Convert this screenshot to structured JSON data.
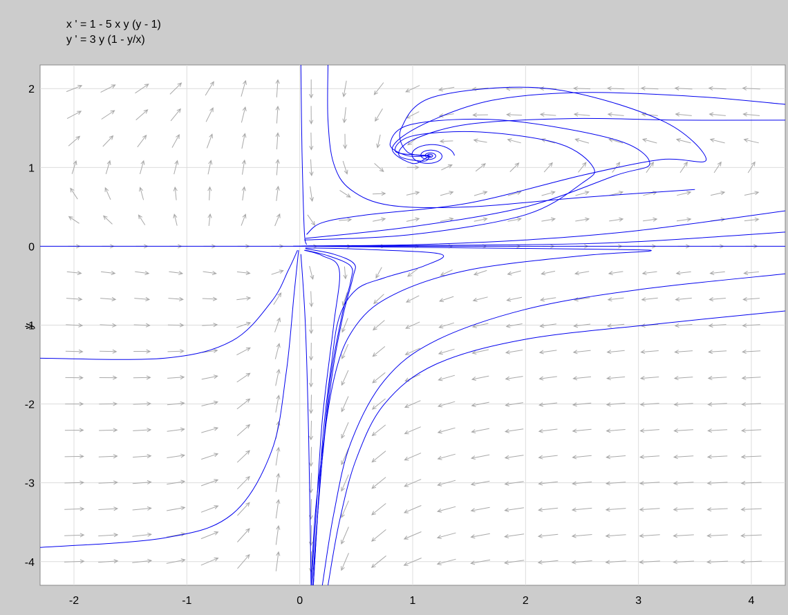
{
  "equations": {
    "x_prime": "x ' = 1 - 5 x y (y - 1)",
    "y_prime": "y ' = 3 y (1 - y/x)"
  },
  "chart_data": {
    "type": "phase-portrait",
    "title": "",
    "xlabel": "",
    "ylabel": "y",
    "xlim": [
      -2.3,
      4.3
    ],
    "ylim": [
      -4.3,
      2.3
    ],
    "x_ticks": [
      -2,
      -1,
      0,
      1,
      2,
      3,
      4
    ],
    "y_ticks": [
      2,
      1,
      0,
      -1,
      -2,
      -3,
      -4
    ],
    "grid": true,
    "colors": {
      "background": "#cccccc",
      "plot_area": "#ffffff",
      "grid": "#dcdcdc",
      "direction_field": "#a8a8a8",
      "solution_curves": "#0000ee"
    },
    "direction_field": {
      "x_range": [
        -2,
        4
      ],
      "y_range": [
        -4,
        2
      ]
    },
    "equilibrium_spiral": {
      "x": 1.15,
      "y": 1.15
    },
    "solution_curves": [
      {
        "name": "",
        "points": [
          [
            0.01,
            2.3
          ],
          [
            0.02,
            1.2
          ],
          [
            0.04,
            0.2
          ],
          [
            0.06,
            0.02
          ]
        ]
      },
      {
        "name": "",
        "points": [
          [
            0.25,
            2.3
          ],
          [
            0.25,
            1.6
          ],
          [
            0.3,
            1.05
          ],
          [
            0.45,
            0.72
          ],
          [
            0.8,
            0.52
          ],
          [
            1.5,
            0.5
          ],
          [
            2.5,
            0.62
          ],
          [
            3.5,
            0.72
          ]
        ]
      },
      {
        "name": "",
        "points": [
          [
            0.06,
            0.15
          ],
          [
            0.2,
            0.3
          ],
          [
            0.6,
            0.4
          ],
          [
            1.5,
            0.55
          ],
          [
            2.5,
            0.9
          ],
          [
            3.2,
            1.1
          ],
          [
            3.6,
            1.1
          ],
          [
            3.2,
            1.6
          ],
          [
            2.2,
            2.0
          ],
          [
            1.2,
            1.9
          ],
          [
            0.9,
            1.5
          ],
          [
            0.95,
            1.2
          ],
          [
            1.15,
            1.15
          ]
        ]
      },
      {
        "name": "",
        "points": [
          [
            0.05,
            0.1
          ],
          [
            1,
            0.25
          ],
          [
            2,
            0.5
          ],
          [
            2.8,
            0.9
          ],
          [
            3.1,
            1.05
          ],
          [
            2.8,
            1.35
          ],
          [
            1.8,
            1.6
          ],
          [
            1.0,
            1.55
          ],
          [
            0.8,
            1.3
          ],
          [
            0.95,
            1.15
          ],
          [
            1.15,
            1.15
          ]
        ]
      },
      {
        "name": "",
        "points": [
          [
            0.04,
            0.08
          ],
          [
            1,
            0.15
          ],
          [
            2,
            0.4
          ],
          [
            2.5,
            0.8
          ],
          [
            2.6,
            1.0
          ],
          [
            2.3,
            1.3
          ],
          [
            1.6,
            1.45
          ],
          [
            1.0,
            1.4
          ],
          [
            0.85,
            1.2
          ],
          [
            1.15,
            1.15
          ]
        ]
      },
      {
        "name": "",
        "points": [
          [
            4.3,
            1.8
          ],
          [
            3.5,
            1.9
          ],
          [
            2.5,
            1.95
          ],
          [
            1.7,
            1.85
          ],
          [
            1.1,
            1.55
          ],
          [
            0.82,
            1.25
          ],
          [
            1.0,
            1.05
          ],
          [
            1.15,
            1.15
          ]
        ]
      },
      {
        "name": "",
        "points": [
          [
            4.3,
            1.6
          ],
          [
            3.4,
            1.6
          ],
          [
            2.4,
            1.62
          ],
          [
            1.5,
            1.55
          ],
          [
            1.0,
            1.35
          ],
          [
            0.88,
            1.15
          ],
          [
            1.1,
            1.08
          ],
          [
            1.15,
            1.15
          ]
        ]
      },
      {
        "name": "",
        "points": [
          [
            4.3,
            0.45
          ],
          [
            3,
            0.2
          ],
          [
            2,
            0.08
          ],
          [
            1,
            0.02
          ],
          [
            0.1,
            0.005
          ],
          [
            0.05,
            0.002
          ]
        ]
      },
      {
        "name": "",
        "points": [
          [
            4.3,
            0.18
          ],
          [
            3,
            0.06
          ],
          [
            2,
            0.02
          ],
          [
            0.1,
            0.003
          ],
          [
            0.05,
            0.001
          ]
        ]
      },
      {
        "name": "",
        "points": [
          [
            -2.3,
            0
          ],
          [
            4.3,
            0
          ]
        ]
      },
      {
        "name": "",
        "points": [
          [
            0.05,
            0
          ],
          [
            1.5,
            -0.02
          ],
          [
            2.8,
            -0.04
          ],
          [
            3.1,
            -0.06
          ],
          [
            2.5,
            -0.12
          ],
          [
            1.5,
            -0.3
          ],
          [
            0.85,
            -0.6
          ],
          [
            0.5,
            -1.0
          ],
          [
            0.3,
            -1.7
          ],
          [
            0.15,
            -3.2
          ],
          [
            0.1,
            -4.3
          ]
        ]
      },
      {
        "name": "",
        "points": [
          [
            0.05,
            -0.02
          ],
          [
            0.6,
            -0.04
          ],
          [
            1.25,
            -0.1
          ],
          [
            1.1,
            -0.25
          ],
          [
            0.75,
            -0.4
          ],
          [
            0.5,
            -0.55
          ],
          [
            0.35,
            -0.9
          ],
          [
            0.28,
            -1.5
          ],
          [
            0.2,
            -2.5
          ],
          [
            0.12,
            -4.3
          ]
        ]
      },
      {
        "name": "",
        "points": [
          [
            0.05,
            -0.03
          ],
          [
            0.3,
            -0.1
          ],
          [
            0.48,
            -0.22
          ],
          [
            0.47,
            -0.4
          ],
          [
            0.38,
            -0.9
          ],
          [
            0.28,
            -1.7
          ],
          [
            0.18,
            -3.0
          ],
          [
            0.12,
            -4.3
          ]
        ]
      },
      {
        "name": "",
        "points": [
          [
            0.05,
            -0.05
          ],
          [
            0.25,
            -0.12
          ],
          [
            0.45,
            -0.25
          ],
          [
            0.45,
            -0.45
          ],
          [
            0.37,
            -0.9
          ],
          [
            0.26,
            -1.8
          ],
          [
            0.17,
            -3.2
          ],
          [
            0.11,
            -4.3
          ]
        ]
      },
      {
        "name": "",
        "points": [
          [
            0.04,
            -0.05
          ],
          [
            0.2,
            -0.12
          ],
          [
            0.35,
            -0.3
          ],
          [
            0.3,
            -1.0
          ],
          [
            0.2,
            -2.2
          ],
          [
            0.14,
            -3.5
          ],
          [
            0.1,
            -4.3
          ]
        ]
      },
      {
        "name": "",
        "points": [
          [
            4.3,
            -0.35
          ],
          [
            3,
            -0.55
          ],
          [
            2,
            -0.8
          ],
          [
            1.2,
            -1.2
          ],
          [
            0.75,
            -1.7
          ],
          [
            0.45,
            -2.5
          ],
          [
            0.3,
            -3.4
          ],
          [
            0.2,
            -4.3
          ]
        ]
      },
      {
        "name": "",
        "points": [
          [
            4.3,
            -0.82
          ],
          [
            3.2,
            -0.98
          ],
          [
            2,
            -1.18
          ],
          [
            1.2,
            -1.5
          ],
          [
            0.75,
            -2.0
          ],
          [
            0.5,
            -2.7
          ],
          [
            0.35,
            -3.5
          ],
          [
            0.25,
            -4.3
          ]
        ]
      },
      {
        "name": "",
        "points": [
          [
            -2.3,
            -1.42
          ],
          [
            -1.2,
            -1.42
          ],
          [
            -0.6,
            -1.2
          ],
          [
            -0.25,
            -0.7
          ],
          [
            -0.1,
            -0.3
          ],
          [
            -0.02,
            -0.05
          ]
        ]
      },
      {
        "name": "",
        "points": [
          [
            -2.3,
            -3.82
          ],
          [
            -1.2,
            -3.7
          ],
          [
            -0.6,
            -3.4
          ],
          [
            -0.25,
            -2.6
          ],
          [
            -0.12,
            -1.6
          ],
          [
            -0.05,
            -0.6
          ],
          [
            -0.01,
            -0.05
          ]
        ]
      },
      {
        "name": "",
        "points": [
          [
            0.01,
            -0.1
          ],
          [
            0.05,
            -1.0
          ],
          [
            0.08,
            -2.5
          ],
          [
            0.1,
            -4.3
          ]
        ]
      }
    ]
  }
}
